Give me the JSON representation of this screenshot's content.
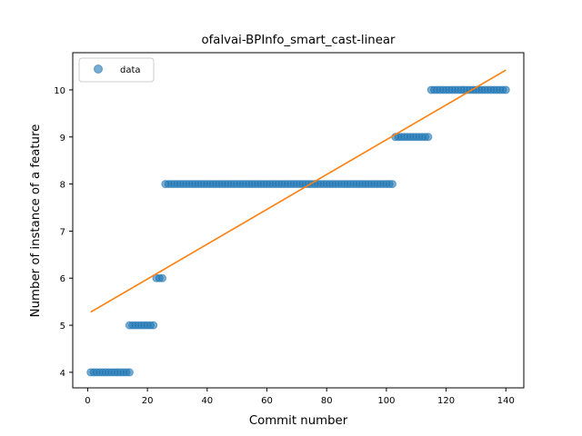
{
  "chart_data": {
    "type": "scatter",
    "title": "ofalvai-BPInfo_smart_cast-linear",
    "xlabel": "Commit number",
    "ylabel": "Number of instance of a feature",
    "xlim": [
      -5,
      146
    ],
    "ylim": [
      3.67,
      10.79
    ],
    "xticks": [
      0,
      20,
      40,
      60,
      80,
      100,
      120,
      140
    ],
    "yticks": [
      4,
      5,
      6,
      7,
      8,
      9,
      10
    ],
    "grid": false,
    "legend": {
      "position": "top-left",
      "entries": [
        "data"
      ]
    },
    "series": [
      {
        "name": "data",
        "kind": "points",
        "color": "#1f77b4",
        "segments": [
          {
            "x_start": 1,
            "x_end": 14,
            "y": 4
          },
          {
            "x_start": 14,
            "x_end": 22,
            "y": 5
          },
          {
            "x_start": 23,
            "x_end": 25,
            "y": 6
          },
          {
            "x_start": 26,
            "x_end": 102,
            "y": 8
          },
          {
            "x_start": 103,
            "x_end": 114,
            "y": 9
          },
          {
            "x_start": 115,
            "x_end": 140,
            "y": 10
          }
        ]
      },
      {
        "kind": "fit-line",
        "color": "#ff7f0e",
        "x": [
          1,
          140
        ],
        "y": [
          5.28,
          10.42
        ]
      }
    ]
  }
}
